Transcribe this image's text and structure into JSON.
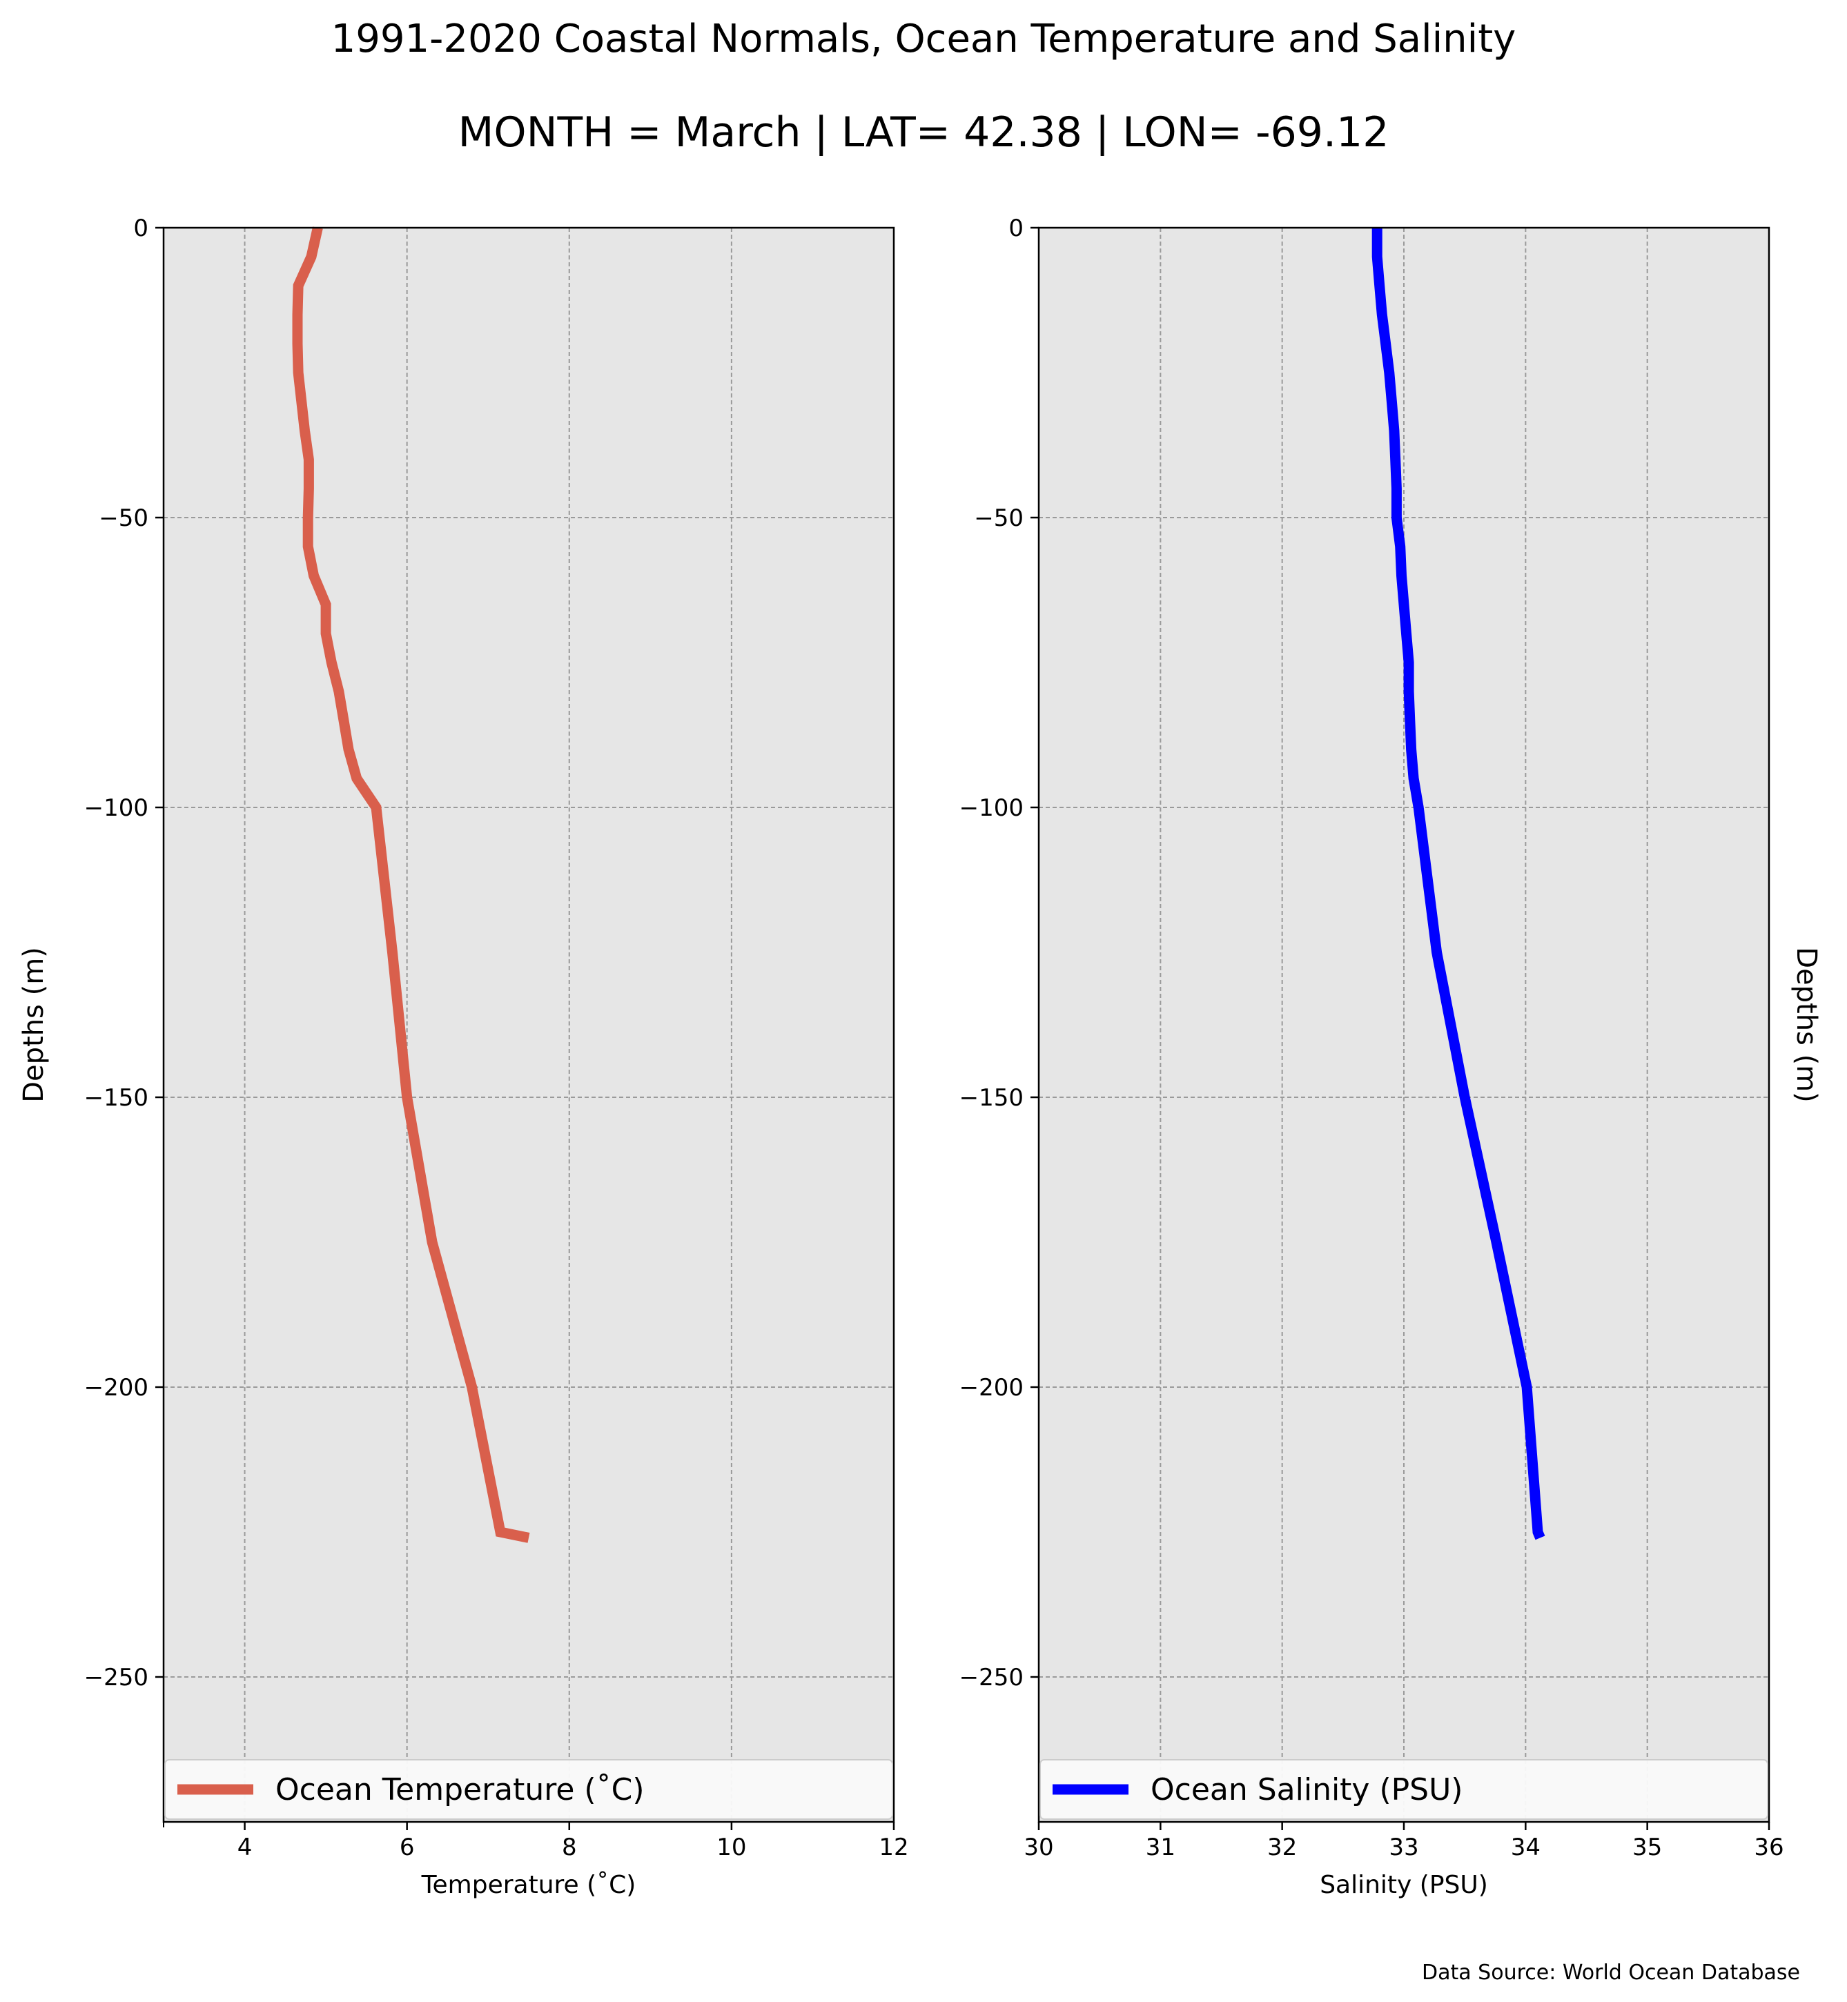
{
  "figure": {
    "title": "1991-2020 Coastal Normals, Ocean Temperature and Salinity",
    "subtitle": "MONTH = March | LAT= 42.38 | LON= -69.12",
    "source": "Data Source: World Ocean Database"
  },
  "chart_data": [
    {
      "type": "line",
      "xlabel": "Temperature ($^\\circ$C)",
      "xlabel_display": "Temperature (˚C)",
      "ylabel": "Depths (m)",
      "ylabel_side": "left",
      "xlim": [
        3,
        12
      ],
      "ylim": [
        -275,
        0
      ],
      "xticks": [
        4,
        6,
        8,
        10,
        12
      ],
      "yticks": [
        0,
        -50,
        -100,
        -150,
        -200,
        -250
      ],
      "xtick_labels": [
        "4",
        "6",
        "8",
        "10",
        "12"
      ],
      "ytick_labels": [
        "0",
        "−50",
        "−100",
        "−150",
        "−200",
        "−250"
      ],
      "grid": true,
      "legend_position": "lower-center",
      "series": [
        {
          "name": "Ocean Temperature (˚C)",
          "color": "#d95f4c",
          "x": [
            4.9,
            4.82,
            4.66,
            4.65,
            4.65,
            4.66,
            4.7,
            4.74,
            4.79,
            4.79,
            4.78,
            4.78,
            4.85,
            5.0,
            5.0,
            5.07,
            5.16,
            5.22,
            5.28,
            5.38,
            5.62,
            5.82,
            6.0,
            6.31,
            6.8,
            7.15,
            7.5
          ],
          "y": [
            0,
            -5,
            -10,
            -15,
            -20,
            -25,
            -30,
            -35,
            -40,
            -45,
            -50,
            -55,
            -60,
            -65,
            -70,
            -75,
            -80,
            -85,
            -90,
            -95,
            -100,
            -125,
            -150,
            -175,
            -200,
            -225,
            -226
          ]
        }
      ]
    },
    {
      "type": "line",
      "xlabel": "Salinity (PSU)",
      "ylabel": "Depths (m)",
      "ylabel_side": "right",
      "xlim": [
        30,
        36
      ],
      "ylim": [
        -275,
        0
      ],
      "xticks": [
        30,
        31,
        32,
        33,
        34,
        35,
        36
      ],
      "yticks": [
        0,
        -50,
        -100,
        -150,
        -200,
        -250
      ],
      "xtick_labels": [
        "30",
        "31",
        "32",
        "33",
        "34",
        "35",
        "36"
      ],
      "ytick_labels": [
        "0",
        "−50",
        "−100",
        "−150",
        "−200",
        "−250"
      ],
      "grid": true,
      "legend_position": "lower-center",
      "series": [
        {
          "name": "Ocean Salinity (PSU)",
          "color": "#0000ff",
          "x": [
            32.78,
            32.78,
            32.8,
            32.82,
            32.85,
            32.88,
            32.9,
            32.92,
            32.93,
            32.94,
            32.94,
            32.97,
            32.98,
            33.0,
            33.02,
            33.04,
            33.04,
            33.05,
            33.06,
            33.08,
            33.12,
            33.27,
            33.5,
            33.76,
            34.01,
            34.1,
            34.12
          ],
          "y": [
            0,
            -5,
            -10,
            -15,
            -20,
            -25,
            -30,
            -35,
            -40,
            -45,
            -50,
            -55,
            -60,
            -65,
            -70,
            -75,
            -80,
            -85,
            -90,
            -95,
            -100,
            -125,
            -150,
            -175,
            -200,
            -225,
            -226
          ]
        }
      ]
    }
  ]
}
